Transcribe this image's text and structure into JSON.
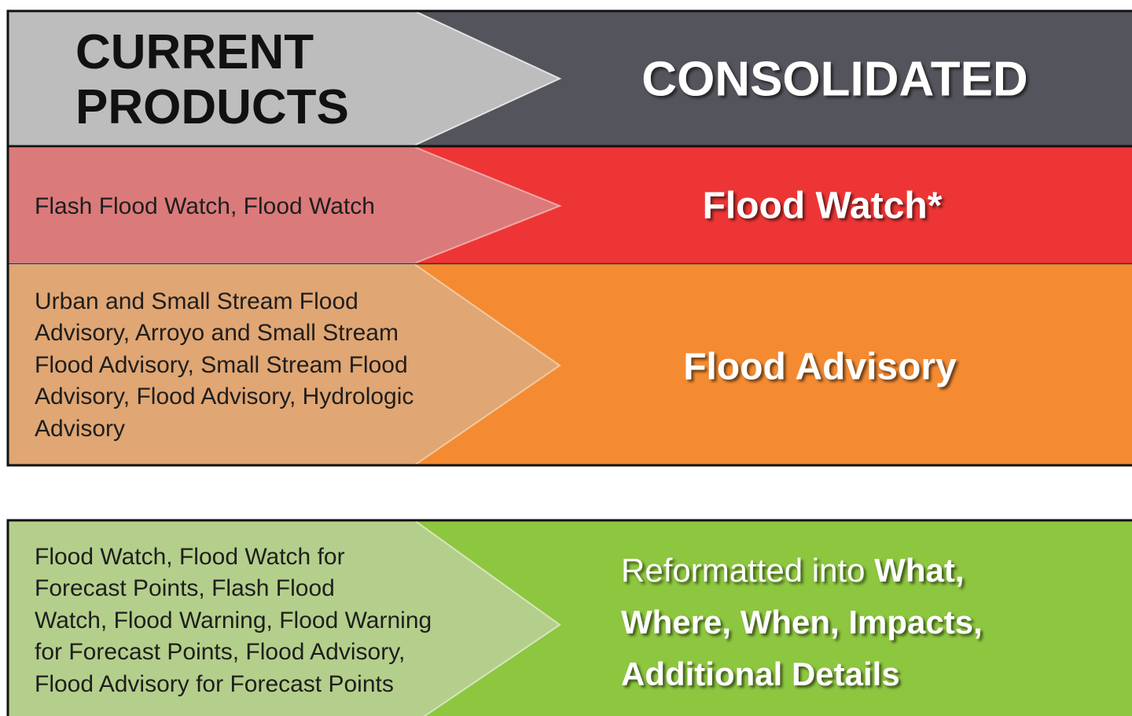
{
  "header": {
    "current": [
      "CURRENT",
      "PRODUCTS"
    ],
    "consolidated": "CONSOLIDATED"
  },
  "rows": [
    {
      "current": [
        "Flash Flood Watch, Flood Watch"
      ],
      "consolidated": "Flood Watch*"
    },
    {
      "current": [
        "Urban and Small Stream Flood",
        "Advisory, Arroyo and Small Stream",
        "Flood Advisory, Small Stream Flood",
        "Advisory, Flood Advisory, Hydrologic",
        "Advisory"
      ],
      "consolidated": "Flood Advisory"
    }
  ],
  "reformatted": {
    "current": [
      "Flood Watch, Flood Watch for",
      "Forecast Points, Flash Flood",
      "Watch, Flood Warning, Flood Warning",
      "for Forecast Points, Flood Advisory,",
      "Flood Advisory for Forecast Points"
    ],
    "consolidated": [
      [
        {
          "text": "Reformatted into ",
          "bold": false
        },
        {
          "text": "What,",
          "bold": true
        }
      ],
      [
        {
          "text": "Where, When, Impacts,",
          "bold": true
        }
      ],
      [
        {
          "text": "Additional Details",
          "bold": true
        }
      ]
    ]
  }
}
